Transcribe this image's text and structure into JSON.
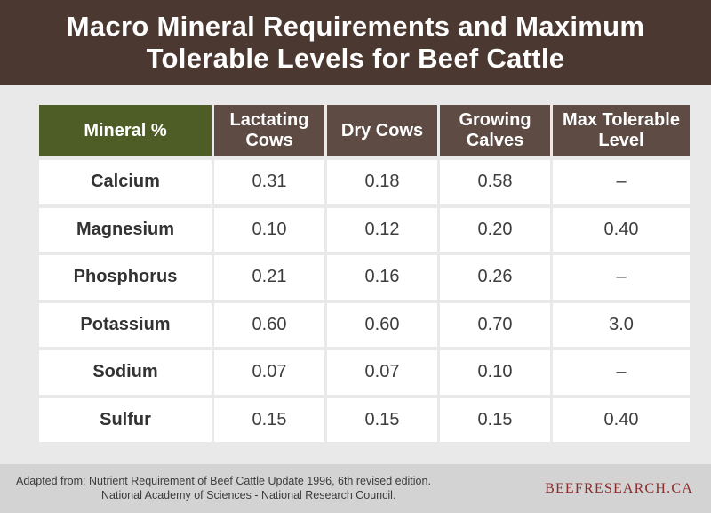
{
  "title": {
    "line1": "Macro Mineral Requirements and Maximum",
    "line2": "Tolerable Levels for Beef Cattle"
  },
  "table": {
    "headers": [
      "Mineral %",
      "Lactating Cows",
      "Dry Cows",
      "Growing Calves",
      "Max Tolerable Level"
    ],
    "rows": [
      {
        "mineral": "Calcium",
        "lactating": "0.31",
        "dry": "0.18",
        "growing": "0.58",
        "max": "–"
      },
      {
        "mineral": "Magnesium",
        "lactating": "0.10",
        "dry": "0.12",
        "growing": "0.20",
        "max": "0.40"
      },
      {
        "mineral": "Phosphorus",
        "lactating": "0.21",
        "dry": "0.16",
        "growing": "0.26",
        "max": "–"
      },
      {
        "mineral": "Potassium",
        "lactating": "0.60",
        "dry": "0.60",
        "growing": "0.70",
        "max": "3.0"
      },
      {
        "mineral": "Sodium",
        "lactating": "0.07",
        "dry": "0.07",
        "growing": "0.10",
        "max": "–"
      },
      {
        "mineral": "Sulfur",
        "lactating": "0.15",
        "dry": "0.15",
        "growing": "0.15",
        "max": "0.40"
      }
    ]
  },
  "footer": {
    "source_line1": "Adapted from: Nutrient Requirement of Beef Cattle Update 1996, 6th revised edition.",
    "source_line2": "National Academy of Sciences - National Research Council.",
    "brand": "BEEFRESEARCH.CA"
  },
  "colors": {
    "header_bg": "#4b3830",
    "table_header_bg": "#5e4b44",
    "mineral_header_bg": "#4e5c26",
    "brand": "#8e2a2a"
  }
}
